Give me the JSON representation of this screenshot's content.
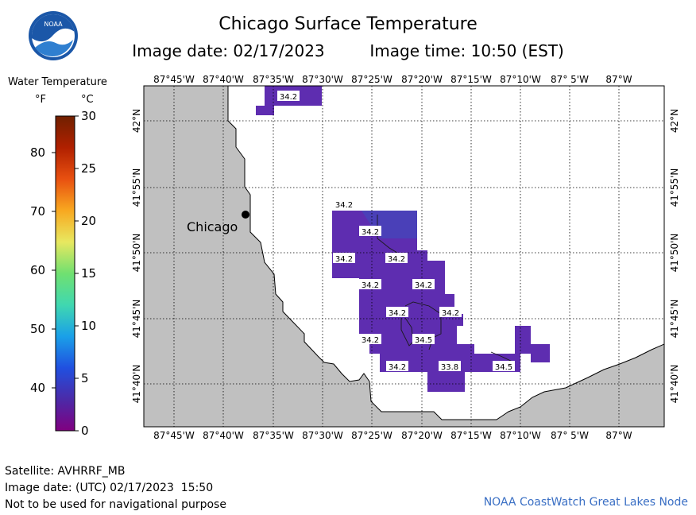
{
  "header": {
    "title": "Chicago Surface Temperature",
    "image_date": "Image date: 02/17/2023",
    "image_time": "Image time: 10:50 (EST)",
    "logo_text": "NOAA"
  },
  "legend": {
    "title": "Water Temperature",
    "unit_f": "°F",
    "unit_c": "°C",
    "f_ticks": [
      "80",
      "70",
      "60",
      "50",
      "40"
    ],
    "c_ticks": [
      "30",
      "25",
      "20",
      "15",
      "10",
      "5",
      "0"
    ],
    "colors": [
      "#800080",
      "#4b2aa8",
      "#2050e0",
      "#1aa0e8",
      "#40d8b0",
      "#70e070",
      "#e8e860",
      "#f8a820",
      "#e85010",
      "#b02000",
      "#702000"
    ]
  },
  "map": {
    "lon_labels_top": [
      "87°45'W",
      "87°40'W",
      "87°35'W",
      "87°30'W",
      "87°25'W",
      "87°20'W",
      "87°15'W",
      "87°10'W",
      "87° 5'W",
      "87°W"
    ],
    "lon_labels_bottom": [
      "87°45'W",
      "87°40'W",
      "87°35'W",
      "87°30'W",
      "87°25'W",
      "87°20'W",
      "87°15'W",
      "87°10'W",
      "87° 5'W",
      "87°W"
    ],
    "lat_labels": [
      "42°N",
      "41°55'N",
      "41°50'N",
      "41°45'N",
      "41°40'N"
    ],
    "city": "Chicago",
    "land_color": "#c0c0c0",
    "water_color": "#5e2db0",
    "temperature_labels": [
      "34.2",
      "34.2",
      "34.2",
      "34.2",
      "34.2",
      "34.2",
      "34.2",
      "34.2",
      "34.2",
      "34.2",
      "34.5",
      "34.2",
      "33.8",
      "34.5"
    ]
  },
  "footer": {
    "satellite": "Satellite: AVHRRF_MB",
    "utc_date": "Image date: (UTC) 02/17/2023  15:50",
    "disclaimer": "Not to be used for navigational purpose",
    "credit": "NOAA CoastWatch Great Lakes Node"
  }
}
